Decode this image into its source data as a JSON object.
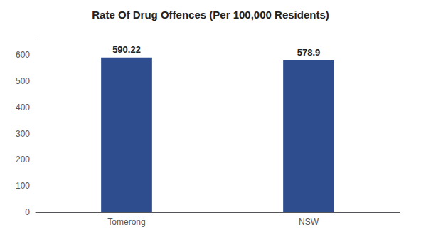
{
  "chart_data": {
    "type": "bar",
    "title": "Rate Of Drug Offences (Per 100,000 Residents)",
    "categories": [
      "Tomerong",
      "NSW"
    ],
    "values": [
      590.22,
      578.9
    ],
    "color": "#2d4d8e",
    "ylim": [
      0,
      660
    ],
    "yticks": [
      0,
      100,
      200,
      300,
      400,
      500,
      600
    ],
    "grid": false,
    "data_labels": true
  }
}
